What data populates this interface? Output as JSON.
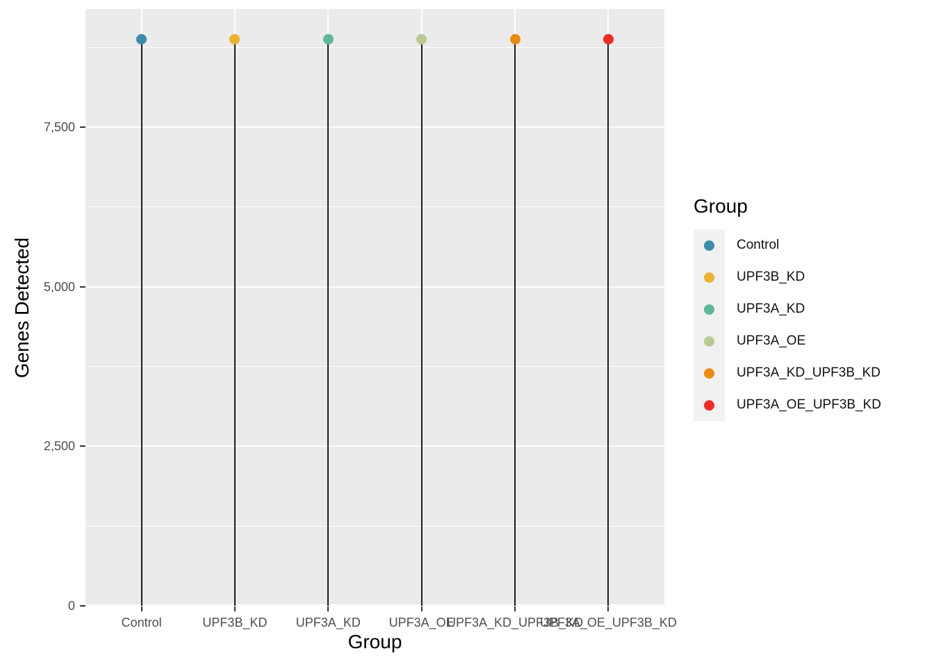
{
  "chart_data": {
    "type": "scatter",
    "variant": "lollipop",
    "title": "",
    "xlabel": "Group",
    "ylabel": "Genes Detected",
    "categories": [
      "Control",
      "UPF3B_KD",
      "UPF3A_KD",
      "UPF3A_OE",
      "UPF3A_KD_UPF3B_KD",
      "UPF3A_OE_UPF3B_KD"
    ],
    "series": [
      {
        "name": "Genes Detected",
        "values": [
          8880,
          8880,
          8880,
          8880,
          8880,
          8880
        ]
      }
    ],
    "point_colors": [
      "#3B8CA9",
      "#EAB32D",
      "#5EB999",
      "#B8CA92",
      "#EC8B0E",
      "#EF2B25"
    ],
    "ylim": [
      0,
      9350
    ],
    "yticks": {
      "values": [
        0,
        2500,
        5000,
        7500
      ],
      "labels": [
        "0",
        "2,500",
        "5,000",
        "7,500"
      ]
    },
    "yminor": [
      1250,
      3750,
      6250,
      8750
    ],
    "grid": "on",
    "legend_position": "right",
    "panel_bg": "#EBEBEB",
    "gridline_color": "#FFFFFF",
    "stem_color": "#1C1C1C",
    "tick_label_color": "#4D4D4D",
    "legend": {
      "title": "Group",
      "key_bg": "#F1F1F1",
      "entries": [
        {
          "label": "Control",
          "color": "#3B8CA9"
        },
        {
          "label": "UPF3B_KD",
          "color": "#EAB32D"
        },
        {
          "label": "UPF3A_KD",
          "color": "#5EB999"
        },
        {
          "label": "UPF3A_OE",
          "color": "#B8CA92"
        },
        {
          "label": "UPF3A_KD_UPF3B_KD",
          "color": "#EC8B0E"
        },
        {
          "label": "UPF3A_OE_UPF3B_KD",
          "color": "#EF2B25"
        }
      ]
    }
  }
}
